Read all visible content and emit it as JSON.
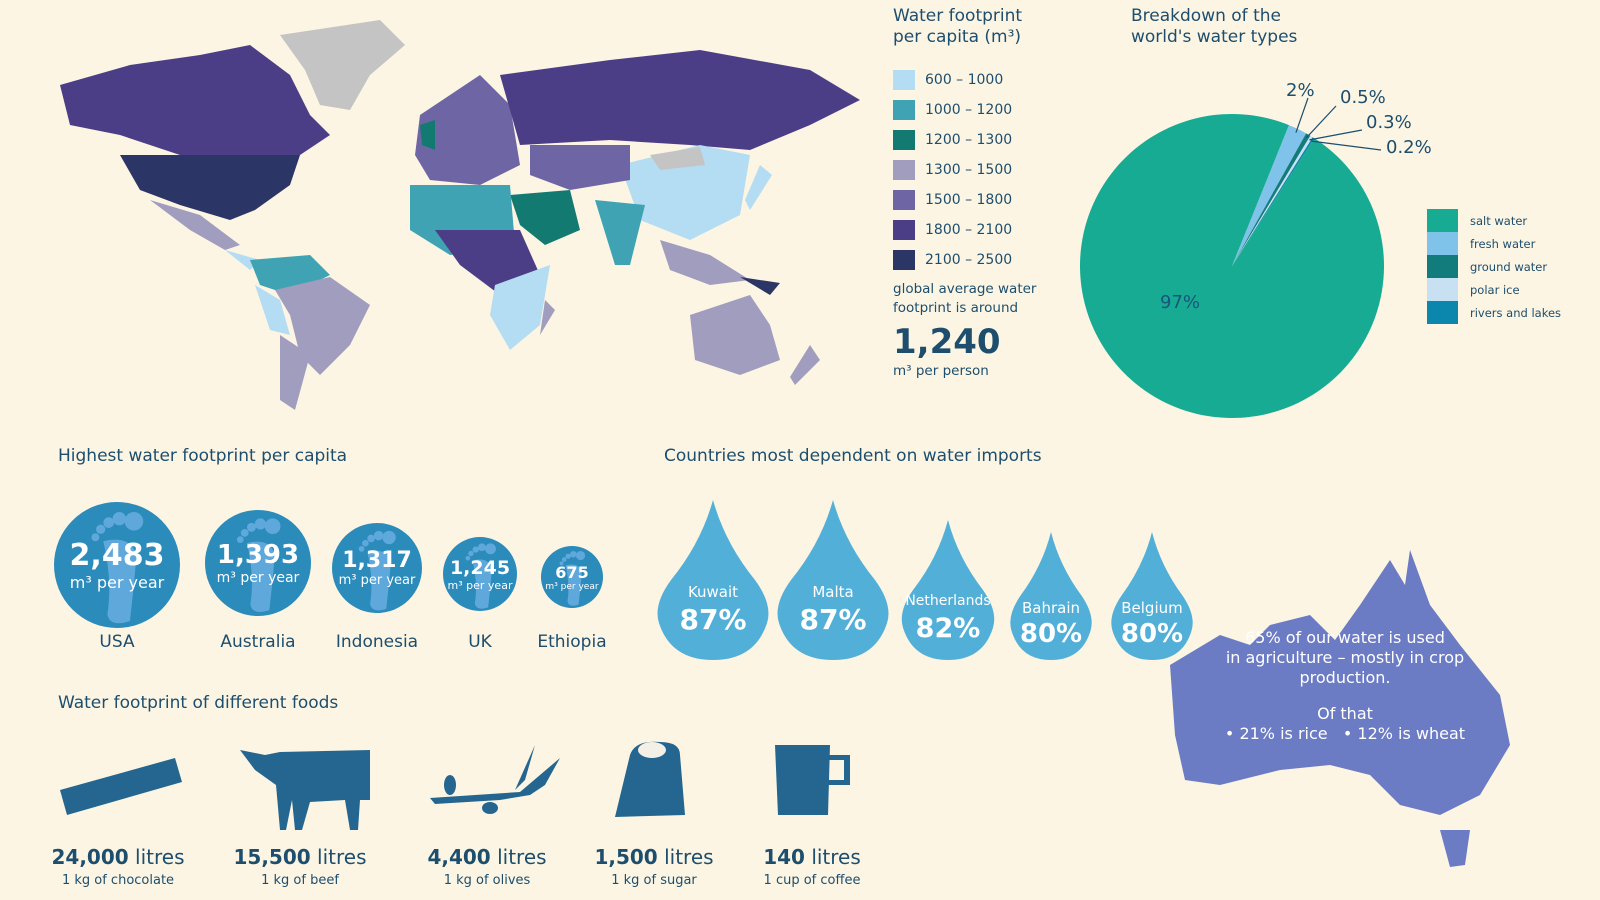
{
  "map_legend": {
    "title_line1": "Water footprint",
    "title_line2": "per capita (m³)",
    "items": [
      {
        "label": "600 – 1000",
        "color": "#b4dcf2"
      },
      {
        "label": "1000 – 1200",
        "color": "#3fa3b3"
      },
      {
        "label": "1200 – 1300",
        "color": "#137a72"
      },
      {
        "label": "1300 – 1500",
        "color": "#a09dbf"
      },
      {
        "label": "1500 – 1800",
        "color": "#6e65a5"
      },
      {
        "label": "1800 – 2100",
        "color": "#4c3e86"
      },
      {
        "label": "2100 – 2500",
        "color": "#2b3566"
      }
    ],
    "avg_line1": "global average water",
    "avg_line2": "footprint is around",
    "avg_value": "1,240",
    "avg_unit": "m³ per person"
  },
  "chart_data": {
    "type": "pie",
    "title": "Breakdown of the world's water types",
    "title_line1": "Breakdown of the",
    "title_line2": "world's water types",
    "slices": [
      {
        "name": "salt water",
        "value": 97,
        "label": "97%",
        "color": "#17ab93"
      },
      {
        "name": "fresh water",
        "value": 2,
        "label": "2%",
        "color": "#7fc3ea"
      },
      {
        "name": "ground water",
        "value": 0.5,
        "label": "0.5%",
        "color": "#127c7c"
      },
      {
        "name": "polar ice",
        "value": 0.3,
        "label": "0.3%",
        "color": "#c7e1f2"
      },
      {
        "name": "rivers and lakes",
        "value": 0.2,
        "label": "0.2%",
        "color": "#0b86ad"
      }
    ],
    "legend": "right"
  },
  "footprint": {
    "title": "Highest water footprint per capita",
    "unit": "m³ per year",
    "countries": [
      {
        "name": "USA",
        "value": "2,483"
      },
      {
        "name": "Australia",
        "value": "1,393"
      },
      {
        "name": "Indonesia",
        "value": "1,317"
      },
      {
        "name": "UK",
        "value": "1,245"
      },
      {
        "name": "Ethiopia",
        "value": "675"
      }
    ]
  },
  "imports": {
    "title": "Countries most dependent on water imports",
    "countries": [
      {
        "name": "Kuwait",
        "value": "87%"
      },
      {
        "name": "Malta",
        "value": "87%"
      },
      {
        "name": "Netherlands",
        "value": "82%"
      },
      {
        "name": "Bahrain",
        "value": "80%"
      },
      {
        "name": "Belgium",
        "value": "80%"
      }
    ]
  },
  "foods": {
    "title": "Water footprint of different foods",
    "unit": "litres",
    "items": [
      {
        "amount": "24,000",
        "desc": "1 kg of chocolate"
      },
      {
        "amount": "15,500",
        "desc": "1 kg of beef"
      },
      {
        "amount": "4,400",
        "desc": "1 kg of olives"
      },
      {
        "amount": "1,500",
        "desc": "1 kg of sugar"
      },
      {
        "amount": "140",
        "desc": "1 cup of coffee"
      }
    ]
  },
  "australia": {
    "line1": "65% of our water is used",
    "line2": "in agriculture – mostly in crop",
    "line3": "production.",
    "line4": "Of that",
    "line5": "• 21% is rice   • 12% is wheat"
  }
}
